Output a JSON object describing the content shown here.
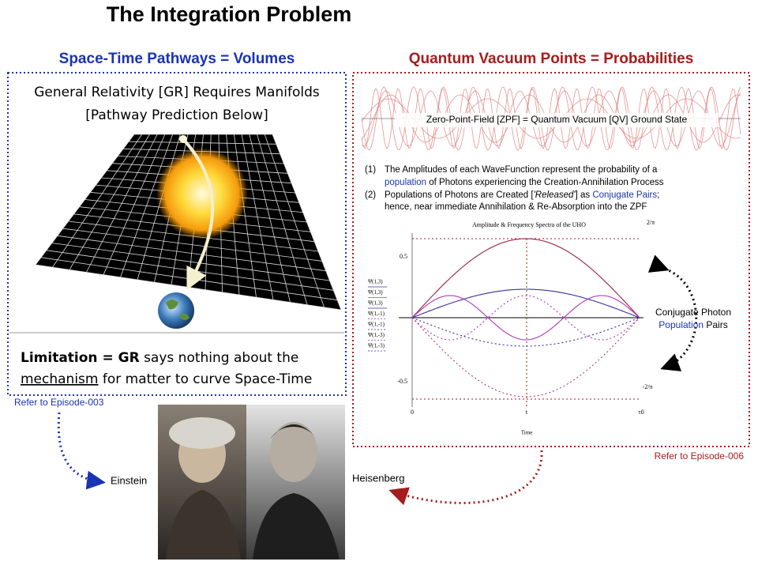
{
  "title": "The Integration Problem",
  "left": {
    "heading": "Space-Time Pathways = Volumes",
    "line1": "General Relativity [GR] Requires Manifolds",
    "line2": "[Pathway Prediction Below]",
    "limitation": {
      "bold": "Limitation = GR",
      "rest1": " says nothing about the",
      "underlined": "mechanism",
      "rest2": " for matter to curve Space-Time"
    },
    "refer": "Refer to Episode-003",
    "person": "Einstein"
  },
  "right": {
    "heading": "Quantum Vacuum Points = Probabilities",
    "zpf": "Zero-Point-Field [ZPF] = Quantum Vacuum [QV] Ground State",
    "notes": [
      {
        "num": "(1)",
        "a": "The Amplitudes of each WaveFunction represent the probability of a",
        "link": "population",
        "b": " of Photons experiencing the Creation-Annihilation Process"
      },
      {
        "num": "(2)",
        "a": "Populations of Photons are Created [",
        "em": "'Released'",
        "b": "] as ",
        "link": "Conjugate Pairs",
        "c": ";",
        "d": "hence, near immediate Annihilation & Re-Absorption into the ZPF"
      }
    ],
    "plot": {
      "title": "Amplitude & Frequency Spectra of the UHO",
      "top_label": "2/π",
      "bottom_label": "-2/π",
      "y_pos": "0.5",
      "y_neg": "-0.5",
      "x_start": "0",
      "x_mid": "t",
      "x_end": "τ0",
      "x_label": "Time",
      "legend": [
        "Ψ(1,3)",
        "Ψ(1,3)",
        "Ψ(1,3)",
        "Ψ(1,-1)",
        "Ψ(1,-1)",
        "Ψ(1,-3)",
        "Ψ(1,-3)"
      ]
    },
    "side": {
      "line1": "Conjugate Photon",
      "link": "Population",
      "rest": " Pairs"
    },
    "refer": "Refer to Episode-006",
    "person": "Heisenberg"
  }
}
